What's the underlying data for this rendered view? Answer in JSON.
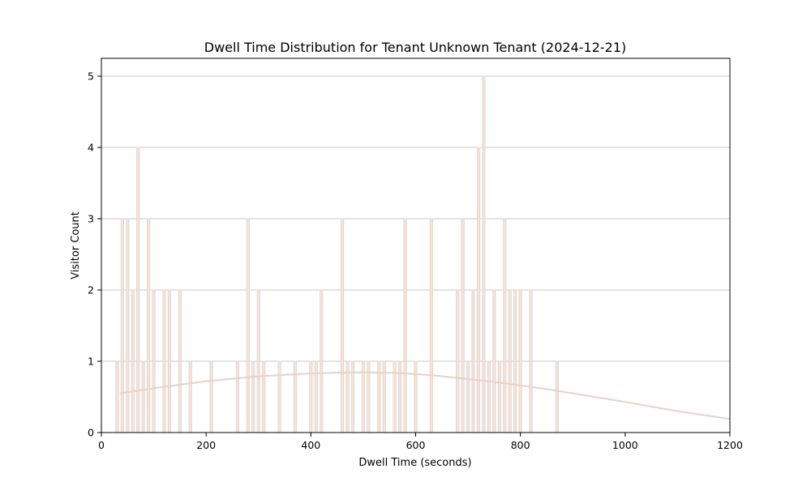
{
  "chart_data": {
    "type": "bar",
    "title": "Dwell Time Distribution for Tenant Unknown Tenant (2024-12-21)",
    "xlabel": "Dwell Time (seconds)",
    "ylabel": "Visitor Count",
    "xlim": [
      0,
      1200
    ],
    "ylim": [
      0,
      5.25
    ],
    "xticks": [
      0,
      200,
      400,
      600,
      800,
      1000,
      1200
    ],
    "yticks": [
      0,
      1,
      2,
      3,
      4,
      5
    ],
    "grid": {
      "y": true,
      "x": false
    },
    "bar_color": "#f2e4dd",
    "bar_edge_color": "#e6d6cf",
    "line_color": "#e8d2c6",
    "bin_width": 10,
    "bins": [
      {
        "x": 30,
        "count": 1
      },
      {
        "x": 40,
        "count": 3
      },
      {
        "x": 50,
        "count": 3
      },
      {
        "x": 60,
        "count": 2
      },
      {
        "x": 70,
        "count": 4
      },
      {
        "x": 80,
        "count": 1
      },
      {
        "x": 90,
        "count": 3
      },
      {
        "x": 100,
        "count": 2
      },
      {
        "x": 120,
        "count": 2
      },
      {
        "x": 130,
        "count": 2
      },
      {
        "x": 150,
        "count": 2
      },
      {
        "x": 170,
        "count": 1
      },
      {
        "x": 210,
        "count": 1
      },
      {
        "x": 260,
        "count": 1
      },
      {
        "x": 280,
        "count": 3
      },
      {
        "x": 290,
        "count": 1
      },
      {
        "x": 300,
        "count": 2
      },
      {
        "x": 310,
        "count": 1
      },
      {
        "x": 340,
        "count": 1
      },
      {
        "x": 370,
        "count": 1
      },
      {
        "x": 400,
        "count": 1
      },
      {
        "x": 410,
        "count": 1
      },
      {
        "x": 420,
        "count": 2
      },
      {
        "x": 460,
        "count": 3
      },
      {
        "x": 470,
        "count": 1
      },
      {
        "x": 480,
        "count": 1
      },
      {
        "x": 500,
        "count": 1
      },
      {
        "x": 510,
        "count": 1
      },
      {
        "x": 530,
        "count": 1
      },
      {
        "x": 540,
        "count": 1
      },
      {
        "x": 560,
        "count": 1
      },
      {
        "x": 570,
        "count": 1
      },
      {
        "x": 580,
        "count": 3
      },
      {
        "x": 600,
        "count": 1
      },
      {
        "x": 630,
        "count": 3
      },
      {
        "x": 680,
        "count": 2
      },
      {
        "x": 690,
        "count": 3
      },
      {
        "x": 700,
        "count": 1
      },
      {
        "x": 710,
        "count": 2
      },
      {
        "x": 720,
        "count": 4
      },
      {
        "x": 730,
        "count": 5
      },
      {
        "x": 740,
        "count": 1
      },
      {
        "x": 750,
        "count": 2
      },
      {
        "x": 760,
        "count": 1
      },
      {
        "x": 770,
        "count": 3
      },
      {
        "x": 780,
        "count": 2
      },
      {
        "x": 790,
        "count": 2
      },
      {
        "x": 800,
        "count": 2
      },
      {
        "x": 820,
        "count": 2
      },
      {
        "x": 870,
        "count": 1
      }
    ],
    "density_curve": {
      "x": [
        35,
        100,
        200,
        300,
        400,
        450,
        500,
        550,
        600,
        650,
        700,
        750,
        800,
        850,
        900,
        1000,
        1100,
        1200
      ],
      "y": [
        0.55,
        0.62,
        0.72,
        0.79,
        0.83,
        0.84,
        0.845,
        0.84,
        0.82,
        0.79,
        0.75,
        0.71,
        0.66,
        0.61,
        0.55,
        0.43,
        0.3,
        0.19
      ]
    }
  }
}
